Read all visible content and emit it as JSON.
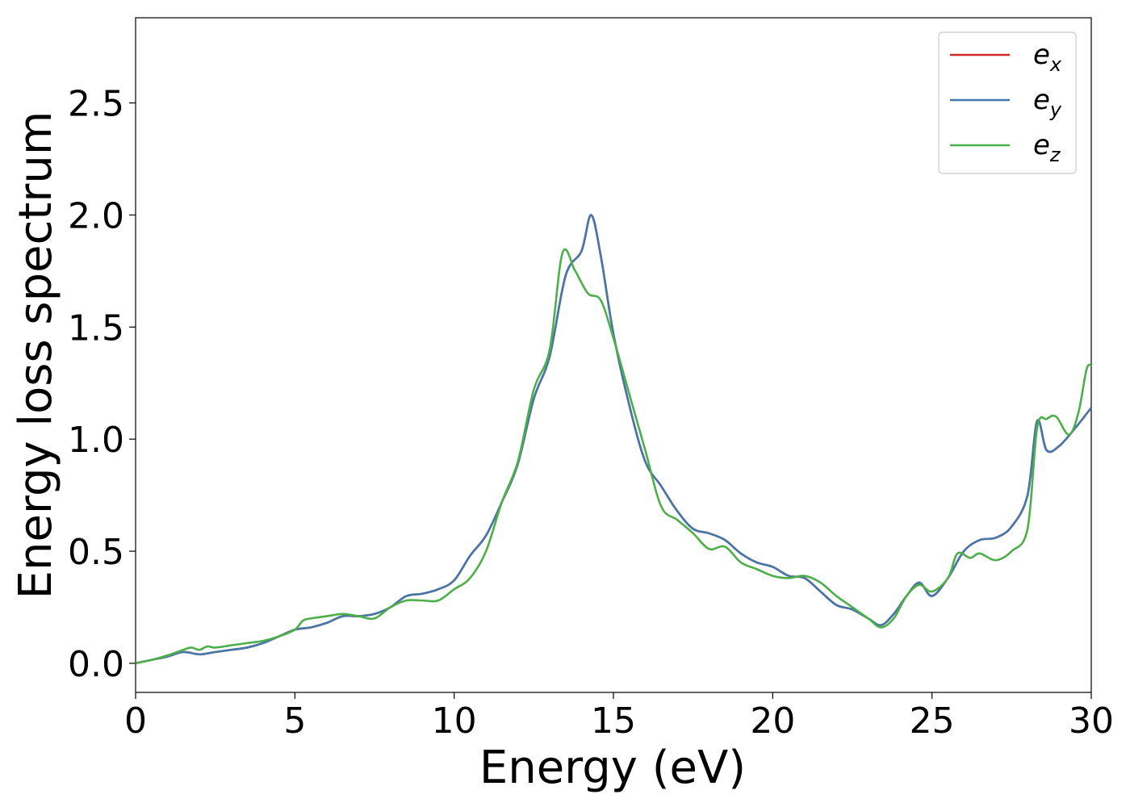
{
  "chart_data": {
    "type": "line",
    "title": "",
    "xlabel": "Energy (eV)",
    "ylabel": "Energy loss spectrum",
    "xlim": [
      0,
      30
    ],
    "ylim": [
      -0.13,
      2.88
    ],
    "xticks": [
      "0",
      "5",
      "10",
      "15",
      "20",
      "25",
      "30"
    ],
    "yticks": [
      "0.0",
      "0.5",
      "1.0",
      "1.5",
      "2.0",
      "2.5"
    ],
    "grid": false,
    "legend_position": "top-right",
    "colors": {
      "ex": "#d62728",
      "ey": "#4477aa",
      "ez": "#4daf4a"
    },
    "legend": [
      {
        "base": "e",
        "sub": "x"
      },
      {
        "base": "e",
        "sub": "y"
      },
      {
        "base": "e",
        "sub": "z"
      }
    ],
    "series": [
      {
        "key": "ex",
        "x": [
          0,
          0.5,
          1.0,
          1.5,
          2.0,
          2.5,
          3.0,
          3.5,
          4.0,
          4.5,
          5.0,
          5.5,
          6.0,
          6.5,
          7.0,
          7.5,
          8.0,
          8.5,
          9.0,
          9.5,
          10.0,
          10.5,
          11.0,
          11.5,
          12.0,
          12.5,
          13.0,
          13.5,
          14.0,
          14.3,
          14.6,
          15.0,
          15.5,
          16.0,
          16.5,
          17.0,
          17.5,
          18.0,
          18.5,
          19.0,
          19.5,
          20.0,
          20.5,
          21.0,
          21.5,
          22.0,
          22.5,
          23.0,
          23.4,
          23.8,
          24.2,
          24.6,
          25.0,
          25.5,
          26.0,
          26.5,
          27.0,
          27.5,
          28.0,
          28.3,
          28.6,
          29.0,
          29.5,
          30.0
        ],
        "y": [
          0.0,
          0.015,
          0.03,
          0.05,
          0.04,
          0.05,
          0.06,
          0.07,
          0.09,
          0.12,
          0.15,
          0.16,
          0.18,
          0.21,
          0.21,
          0.22,
          0.25,
          0.3,
          0.31,
          0.33,
          0.37,
          0.48,
          0.57,
          0.72,
          0.89,
          1.18,
          1.37,
          1.73,
          1.84,
          2.0,
          1.82,
          1.47,
          1.15,
          0.9,
          0.79,
          0.68,
          0.6,
          0.58,
          0.55,
          0.49,
          0.45,
          0.43,
          0.39,
          0.38,
          0.32,
          0.26,
          0.24,
          0.2,
          0.17,
          0.22,
          0.3,
          0.36,
          0.3,
          0.38,
          0.5,
          0.55,
          0.56,
          0.61,
          0.75,
          1.08,
          0.95,
          0.97,
          1.05,
          1.14
        ]
      },
      {
        "key": "ey",
        "x": [
          0,
          0.5,
          1.0,
          1.5,
          2.0,
          2.5,
          3.0,
          3.5,
          4.0,
          4.5,
          5.0,
          5.5,
          6.0,
          6.5,
          7.0,
          7.5,
          8.0,
          8.5,
          9.0,
          9.5,
          10.0,
          10.5,
          11.0,
          11.5,
          12.0,
          12.5,
          13.0,
          13.5,
          14.0,
          14.3,
          14.6,
          15.0,
          15.5,
          16.0,
          16.5,
          17.0,
          17.5,
          18.0,
          18.5,
          19.0,
          19.5,
          20.0,
          20.5,
          21.0,
          21.5,
          22.0,
          22.5,
          23.0,
          23.4,
          23.8,
          24.2,
          24.6,
          25.0,
          25.5,
          26.0,
          26.5,
          27.0,
          27.5,
          28.0,
          28.3,
          28.6,
          29.0,
          29.5,
          30.0
        ],
        "y": [
          0.0,
          0.015,
          0.03,
          0.05,
          0.04,
          0.05,
          0.06,
          0.07,
          0.09,
          0.12,
          0.15,
          0.16,
          0.18,
          0.21,
          0.21,
          0.22,
          0.25,
          0.3,
          0.31,
          0.33,
          0.37,
          0.48,
          0.57,
          0.72,
          0.89,
          1.18,
          1.37,
          1.73,
          1.84,
          2.0,
          1.82,
          1.47,
          1.15,
          0.9,
          0.79,
          0.68,
          0.6,
          0.58,
          0.55,
          0.49,
          0.45,
          0.43,
          0.39,
          0.38,
          0.32,
          0.26,
          0.24,
          0.2,
          0.17,
          0.22,
          0.3,
          0.36,
          0.3,
          0.38,
          0.5,
          0.55,
          0.56,
          0.61,
          0.75,
          1.08,
          0.95,
          0.97,
          1.05,
          1.14
        ]
      },
      {
        "key": "ez",
        "x": [
          0,
          0.5,
          1.0,
          1.5,
          1.75,
          2.0,
          2.25,
          2.5,
          3.0,
          3.5,
          4.0,
          4.5,
          5.0,
          5.25,
          5.5,
          6.0,
          6.5,
          7.0,
          7.5,
          8.0,
          8.5,
          9.0,
          9.5,
          10.0,
          10.5,
          11.0,
          11.5,
          12.0,
          12.5,
          13.0,
          13.4,
          13.8,
          14.2,
          14.6,
          15.0,
          15.5,
          16.0,
          16.5,
          17.0,
          17.5,
          18.0,
          18.5,
          19.0,
          19.5,
          20.0,
          20.5,
          21.0,
          21.5,
          22.0,
          22.5,
          23.0,
          23.4,
          23.8,
          24.2,
          24.6,
          25.0,
          25.5,
          25.8,
          26.2,
          26.5,
          27.0,
          27.5,
          28.0,
          28.3,
          28.6,
          28.9,
          29.3,
          29.6,
          29.85,
          30.0
        ],
        "y": [
          0.0,
          0.015,
          0.035,
          0.06,
          0.07,
          0.06,
          0.075,
          0.07,
          0.08,
          0.09,
          0.1,
          0.12,
          0.15,
          0.19,
          0.2,
          0.21,
          0.22,
          0.21,
          0.2,
          0.25,
          0.28,
          0.28,
          0.28,
          0.33,
          0.38,
          0.5,
          0.72,
          0.9,
          1.22,
          1.4,
          1.83,
          1.75,
          1.65,
          1.62,
          1.45,
          1.2,
          0.95,
          0.7,
          0.64,
          0.58,
          0.51,
          0.52,
          0.45,
          0.42,
          0.39,
          0.38,
          0.39,
          0.36,
          0.3,
          0.25,
          0.2,
          0.16,
          0.2,
          0.3,
          0.35,
          0.32,
          0.38,
          0.49,
          0.47,
          0.49,
          0.46,
          0.5,
          0.6,
          1.05,
          1.09,
          1.1,
          1.02,
          1.12,
          1.31,
          1.33
        ]
      }
    ]
  }
}
